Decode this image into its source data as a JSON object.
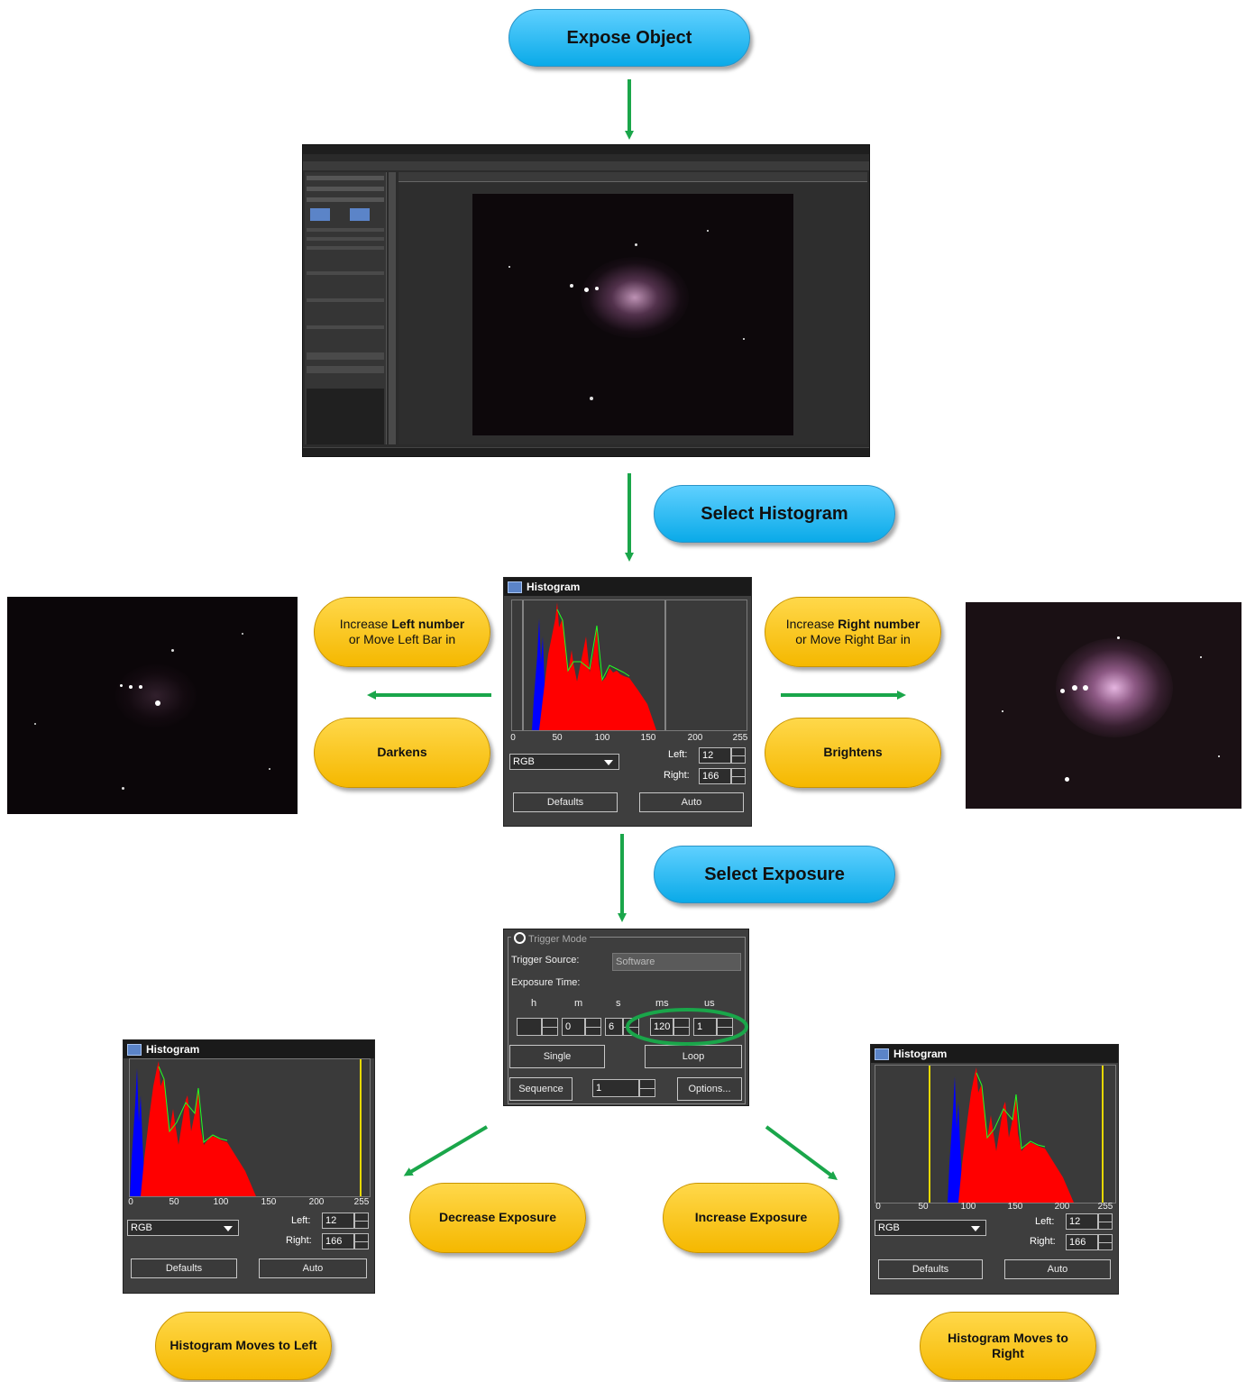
{
  "steps": {
    "expose_object": "Expose Object",
    "select_histogram": "Select Histogram",
    "select_exposure": "Select Exposure"
  },
  "left_note": {
    "increase_prefix": "Increase ",
    "increase_bold": "Left number",
    "increase_rest": "or Move Left Bar in",
    "result": "Darkens"
  },
  "right_note": {
    "increase_prefix": "Increase ",
    "increase_bold": "Right number",
    "increase_rest": "or Move Right Bar in",
    "result": "Brightens"
  },
  "bottom": {
    "decrease_exposure": "Decrease Exposure",
    "increase_exposure": "Increase Exposure",
    "moves_left": "Histogram Moves to Left",
    "moves_right": "Histogram Moves to Right"
  },
  "histogram": {
    "title": "Histogram",
    "ticks": [
      "0",
      "50",
      "100",
      "150",
      "200",
      "255"
    ],
    "channel": "RGB",
    "left_label": "Left:",
    "left_value": "12",
    "right_label": "Right:",
    "right_value": "166",
    "defaults": "Defaults",
    "auto": "Auto"
  },
  "exposure_panel": {
    "mode": "Trigger Mode",
    "source_label": "Trigger Source:",
    "source_value": "Software",
    "time_label": "Exposure Time:",
    "units": [
      "h",
      "m",
      "s",
      "ms",
      "us"
    ],
    "values": [
      "",
      "0",
      "6",
      "120",
      "1"
    ],
    "single": "Single",
    "loop": "Loop",
    "sequence": "Sequence",
    "sequence_count": "1",
    "options": "Options..."
  },
  "colors": {
    "arrow": "#1aa64a",
    "blue_pill": "#0aaae8",
    "yellow_pill": "#f5b800",
    "highlight_ellipse": "#1aa64a"
  }
}
